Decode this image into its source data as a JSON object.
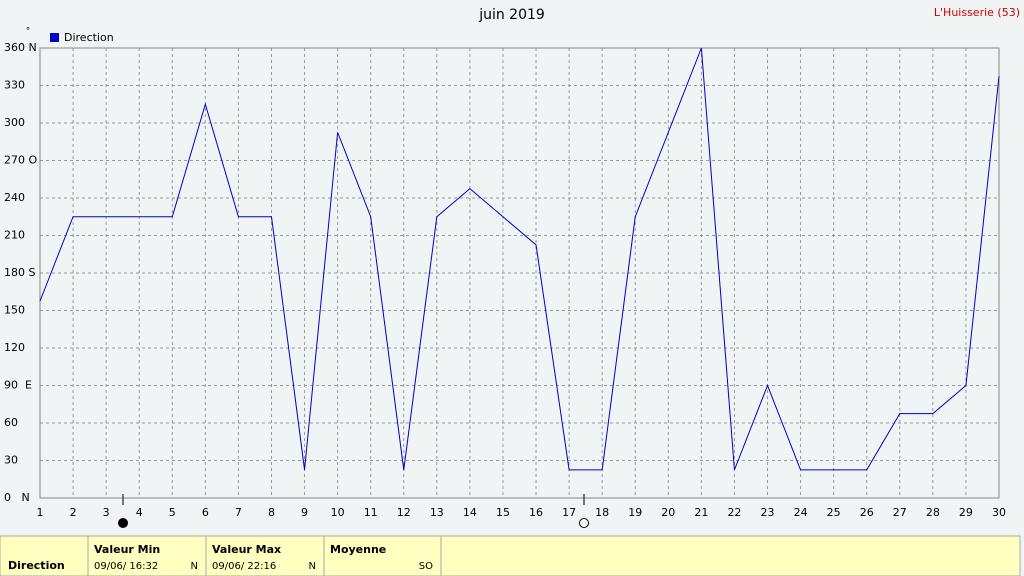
{
  "chart_data": {
    "type": "line",
    "title": "juin 2019",
    "station": "L'Huisserie (53)",
    "y_unit": "°",
    "x": [
      1,
      2,
      3,
      4,
      5,
      6,
      7,
      8,
      9,
      10,
      11,
      12,
      13,
      14,
      15,
      16,
      17,
      18,
      19,
      20,
      21,
      22,
      23,
      24,
      25,
      26,
      27,
      28,
      29,
      30
    ],
    "series": [
      {
        "name": "Direction",
        "color": "#0000c8",
        "values": [
          157.5,
          225,
          225,
          225,
          225,
          315,
          225,
          225,
          22.5,
          292.5,
          225,
          22.5,
          225,
          247.5,
          225,
          202.5,
          22.5,
          22.5,
          225,
          292.5,
          360,
          22.5,
          90,
          22.5,
          22.5,
          22.5,
          67.5,
          67.5,
          90,
          337.5
        ]
      }
    ],
    "xlim": [
      1,
      30
    ],
    "xticks": [
      1,
      2,
      3,
      4,
      5,
      6,
      7,
      8,
      9,
      10,
      11,
      12,
      13,
      14,
      15,
      16,
      17,
      18,
      19,
      20,
      21,
      22,
      23,
      24,
      25,
      26,
      27,
      28,
      29,
      30
    ],
    "ylim": [
      0,
      360
    ],
    "yticks": [
      {
        "value": 0,
        "label": "0   N"
      },
      30,
      60,
      {
        "value": 90,
        "label": "90  E"
      },
      120,
      150,
      {
        "value": 180,
        "label": "180 S"
      },
      210,
      240,
      {
        "value": 270,
        "label": "270 O"
      },
      300,
      330,
      {
        "value": 360,
        "label": "360 N"
      }
    ],
    "grid": true
  },
  "summary": {
    "row_label": "Direction",
    "min": {
      "header": "Valeur Min",
      "time": "09/06/  16:32",
      "value": "N"
    },
    "max": {
      "header": "Valeur Max",
      "time": "09/06/  22:16",
      "value": "N"
    },
    "mean": {
      "header": "Moyenne",
      "value": "SO"
    }
  }
}
